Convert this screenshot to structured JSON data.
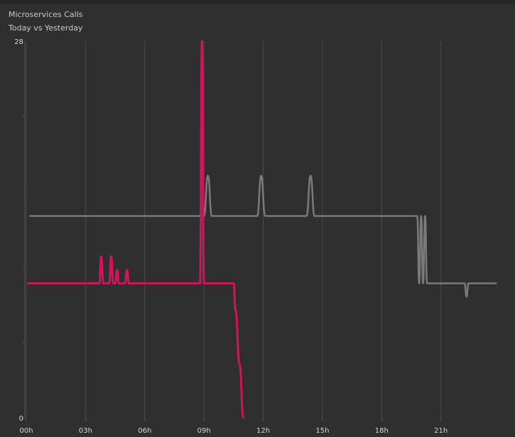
{
  "header": {
    "title": "Microservices Calls",
    "subtitle": "Today vs Yesterday"
  },
  "chart_data": {
    "type": "line",
    "title": "Microservices Calls",
    "subtitle": "Today vs Yesterday",
    "xlabel": "",
    "ylabel": "",
    "xlim": [
      0,
      24
    ],
    "ylim": [
      0,
      28
    ],
    "x_ticks": [
      "00h",
      "03h",
      "06h",
      "09h",
      "12h",
      "15h",
      "18h",
      "21h"
    ],
    "y_ticks": [
      "0",
      "28"
    ],
    "grid": "vertical",
    "legend": "none",
    "series": [
      {
        "color": "#d4145a",
        "points": [
          [
            0.1,
            10
          ],
          [
            3.7,
            10
          ],
          [
            3.8,
            12
          ],
          [
            3.9,
            10
          ],
          [
            4.2,
            10
          ],
          [
            4.3,
            12
          ],
          [
            4.4,
            10
          ],
          [
            4.5,
            10
          ],
          [
            4.6,
            11
          ],
          [
            4.7,
            10
          ],
          [
            5.0,
            10
          ],
          [
            5.1,
            11
          ],
          [
            5.2,
            10
          ],
          [
            8.8,
            10
          ],
          [
            8.9,
            28
          ],
          [
            9.0,
            10
          ],
          [
            10.5,
            10
          ],
          [
            10.6,
            8
          ],
          [
            10.8,
            4
          ],
          [
            11.0,
            0
          ]
        ]
      },
      {
        "color": "#7a7a7a",
        "points": [
          [
            0.2,
            15
          ],
          [
            9.0,
            15
          ],
          [
            9.2,
            18
          ],
          [
            9.4,
            15
          ],
          [
            11.7,
            15
          ],
          [
            11.9,
            18
          ],
          [
            12.1,
            15
          ],
          [
            14.2,
            15
          ],
          [
            14.4,
            18
          ],
          [
            14.6,
            15
          ],
          [
            19.8,
            15
          ],
          [
            19.9,
            10
          ],
          [
            20.0,
            15
          ],
          [
            20.1,
            10
          ],
          [
            20.2,
            15
          ],
          [
            20.3,
            10
          ],
          [
            22.2,
            10
          ],
          [
            22.3,
            9
          ],
          [
            22.4,
            10
          ],
          [
            23.8,
            10
          ]
        ]
      }
    ]
  }
}
